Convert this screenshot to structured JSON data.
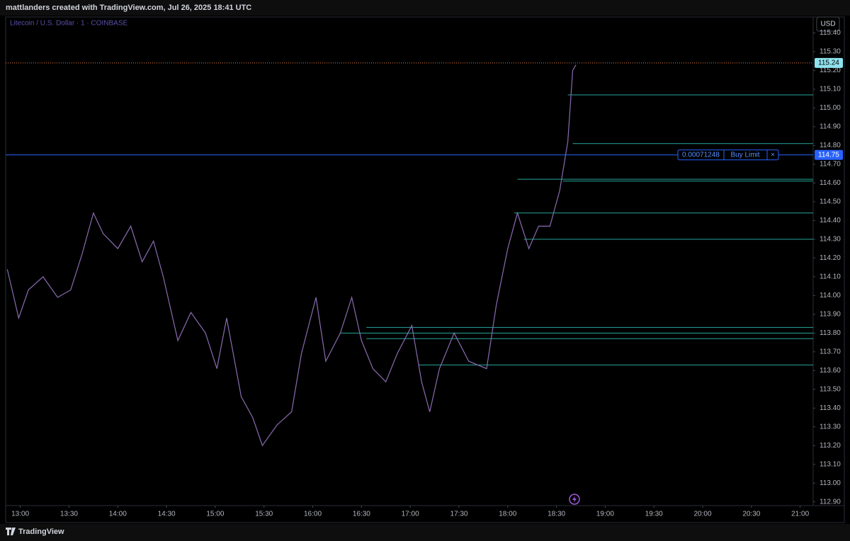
{
  "header": "mattlanders created with TradingView.com, Jul 26, 2025 18:41 UTC",
  "footer": "TradingView",
  "chart_data": {
    "type": "line",
    "title": "Litecoin / U.S. Dollar · 1 · COINBASE",
    "currency": "USD",
    "color": "#8a6bb0",
    "x": [
      772,
      779,
      785,
      794,
      803,
      811,
      818,
      825,
      831,
      840,
      848,
      855,
      862,
      868,
      877,
      885,
      894,
      901,
      907,
      916,
      923,
      929,
      938,
      947,
      953,
      962,
      968,
      977,
      984,
      990,
      997,
      1005,
      1012,
      1021,
      1027,
      1032,
      1038,
      1047,
      1056,
      1067,
      1073,
      1080,
      1086,
      1093,
      1099,
      1106,
      1112,
      1117,
      1120,
      1122
    ],
    "values": [
      114.14,
      113.88,
      114.03,
      114.1,
      113.99,
      114.03,
      114.22,
      114.44,
      114.33,
      114.25,
      114.37,
      114.18,
      114.29,
      114.1,
      113.76,
      113.91,
      113.8,
      113.61,
      113.88,
      113.46,
      113.35,
      113.2,
      113.31,
      113.38,
      113.69,
      113.99,
      113.65,
      113.8,
      113.99,
      113.76,
      113.61,
      113.54,
      113.69,
      113.84,
      113.54,
      113.38,
      113.61,
      113.8,
      113.65,
      113.61,
      113.95,
      114.25,
      114.44,
      114.25,
      114.37,
      114.37,
      114.56,
      114.82,
      115.2,
      115.23
    ],
    "xlim": [
      771,
      1268
    ],
    "ylim": [
      112.88,
      115.47
    ],
    "xticks": [
      {
        "value": 780,
        "label": "13:00"
      },
      {
        "value": 810,
        "label": "13:30"
      },
      {
        "value": 840,
        "label": "14:00"
      },
      {
        "value": 870,
        "label": "14:30"
      },
      {
        "value": 900,
        "label": "15:00"
      },
      {
        "value": 930,
        "label": "15:30"
      },
      {
        "value": 960,
        "label": "16:00"
      },
      {
        "value": 990,
        "label": "16:30"
      },
      {
        "value": 1020,
        "label": "17:00"
      },
      {
        "value": 1050,
        "label": "17:30"
      },
      {
        "value": 1080,
        "label": "18:00"
      },
      {
        "value": 1110,
        "label": "18:30"
      },
      {
        "value": 1140,
        "label": "19:00"
      },
      {
        "value": 1170,
        "label": "19:30"
      },
      {
        "value": 1200,
        "label": "20:00"
      },
      {
        "value": 1230,
        "label": "20:30"
      },
      {
        "value": 1260,
        "label": "21:00"
      }
    ],
    "yticks": [
      {
        "value": 112.9,
        "label": "112.90"
      },
      {
        "value": 113.0,
        "label": "113.00"
      },
      {
        "value": 113.1,
        "label": "113.10"
      },
      {
        "value": 113.2,
        "label": "113.20"
      },
      {
        "value": 113.3,
        "label": "113.30"
      },
      {
        "value": 113.4,
        "label": "113.40"
      },
      {
        "value": 113.5,
        "label": "113.50"
      },
      {
        "value": 113.6,
        "label": "113.60"
      },
      {
        "value": 113.7,
        "label": "113.70"
      },
      {
        "value": 113.8,
        "label": "113.80"
      },
      {
        "value": 113.9,
        "label": "113.90"
      },
      {
        "value": 114.0,
        "label": "114.00"
      },
      {
        "value": 114.1,
        "label": "114.10"
      },
      {
        "value": 114.2,
        "label": "114.20"
      },
      {
        "value": 114.3,
        "label": "114.30"
      },
      {
        "value": 114.4,
        "label": "114.40"
      },
      {
        "value": 114.5,
        "label": "114.50"
      },
      {
        "value": 114.6,
        "label": "114.60"
      },
      {
        "value": 114.7,
        "label": "114.70"
      },
      {
        "value": 114.8,
        "label": "114.80"
      },
      {
        "value": 114.9,
        "label": "114.90"
      },
      {
        "value": 115.0,
        "label": "115.00"
      },
      {
        "value": 115.1,
        "label": "115.10"
      },
      {
        "value": 115.2,
        "label": "115.20"
      },
      {
        "value": 115.3,
        "label": "115.30"
      },
      {
        "value": 115.4,
        "label": "115.40"
      }
    ],
    "levels": {
      "color": "#26a69a",
      "lines": [
        {
          "value": 115.07,
          "start": 1117
        },
        {
          "value": 114.81,
          "start": 1120
        },
        {
          "value": 114.62,
          "start": 1086
        },
        {
          "value": 114.61,
          "start": 1114
        },
        {
          "value": 114.44,
          "start": 1084
        },
        {
          "value": 114.3,
          "start": 1090
        },
        {
          "value": 113.83,
          "start": 993
        },
        {
          "value": 113.8,
          "start": 977
        },
        {
          "value": 113.77,
          "start": 993
        },
        {
          "value": 113.63,
          "start": 1025
        }
      ]
    },
    "last_price": {
      "value": 115.24,
      "color": "#f0833a"
    },
    "order": {
      "price": 114.75,
      "quantity": "0.00071248",
      "text": "Buy Limit",
      "cancel": "×",
      "color": "#2962ff"
    }
  }
}
